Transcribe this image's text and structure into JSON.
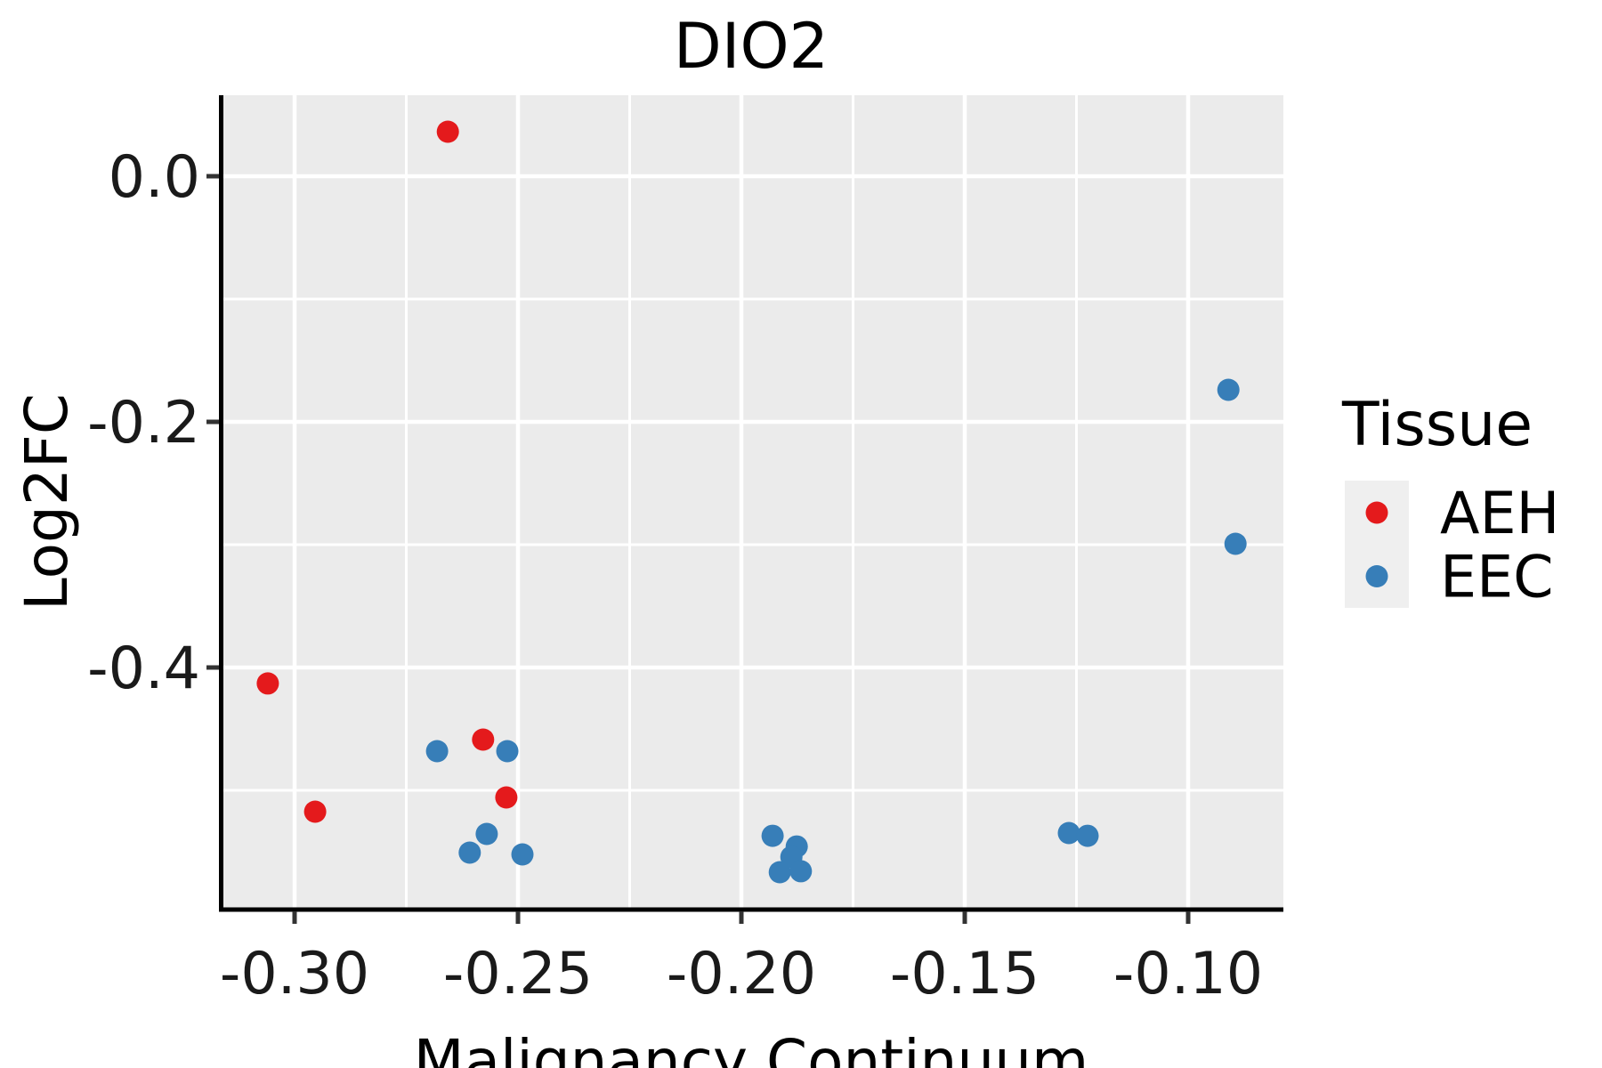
{
  "page": {
    "title": "DIO2"
  },
  "chart_data": {
    "type": "scatter",
    "title": "DIO2",
    "xlabel": "Malignancy Continuum",
    "ylabel": "Log2FC",
    "xlim": [
      -0.317,
      -0.079
    ],
    "ylim": [
      -0.597,
      0.066
    ],
    "grid": "on",
    "plot_background": "#EBEBEB",
    "gridline_color": "#FFFFFF",
    "axis_line_color": "#000000",
    "tick_mark_color": "#333333",
    "x_major_ticks": [
      -0.3,
      -0.25,
      -0.2,
      -0.15,
      -0.1
    ],
    "x_tick_labels": [
      "-0.30",
      "-0.25",
      "-0.20",
      "-0.15",
      "-0.10"
    ],
    "x_minor_ticks": [
      -0.275,
      -0.225,
      -0.175,
      -0.125
    ],
    "y_major_ticks": [
      0.0,
      -0.2,
      -0.4
    ],
    "y_tick_labels": [
      "0.0",
      "-0.2",
      "-0.4"
    ],
    "y_minor_ticks": [
      -0.1,
      -0.3,
      -0.5
    ],
    "point_radius_px": 12.5,
    "legend": {
      "title": "Tissue",
      "position": "right",
      "key_background": "#EFEFEF"
    },
    "series": [
      {
        "name": "AEH",
        "color": "#E41A1C",
        "points": [
          [
            -0.2657,
            0.0362
          ],
          [
            -0.306,
            -0.413
          ],
          [
            -0.2954,
            -0.5174
          ],
          [
            -0.2578,
            -0.4587
          ],
          [
            -0.2526,
            -0.5058
          ]
        ]
      },
      {
        "name": "EEC",
        "color": "#377EB8",
        "points": [
          [
            -0.2681,
            -0.4681
          ],
          [
            -0.2524,
            -0.4681
          ],
          [
            -0.257,
            -0.5355
          ],
          [
            -0.2608,
            -0.5507
          ],
          [
            -0.249,
            -0.5522
          ],
          [
            -0.193,
            -0.537
          ],
          [
            -0.1876,
            -0.5457
          ],
          [
            -0.1888,
            -0.5543
          ],
          [
            -0.1914,
            -0.5667
          ],
          [
            -0.1867,
            -0.5659
          ],
          [
            -0.1267,
            -0.5348
          ],
          [
            -0.1225,
            -0.537
          ],
          [
            -0.091,
            -0.1739
          ],
          [
            -0.0894,
            -0.2993
          ]
        ]
      }
    ]
  }
}
